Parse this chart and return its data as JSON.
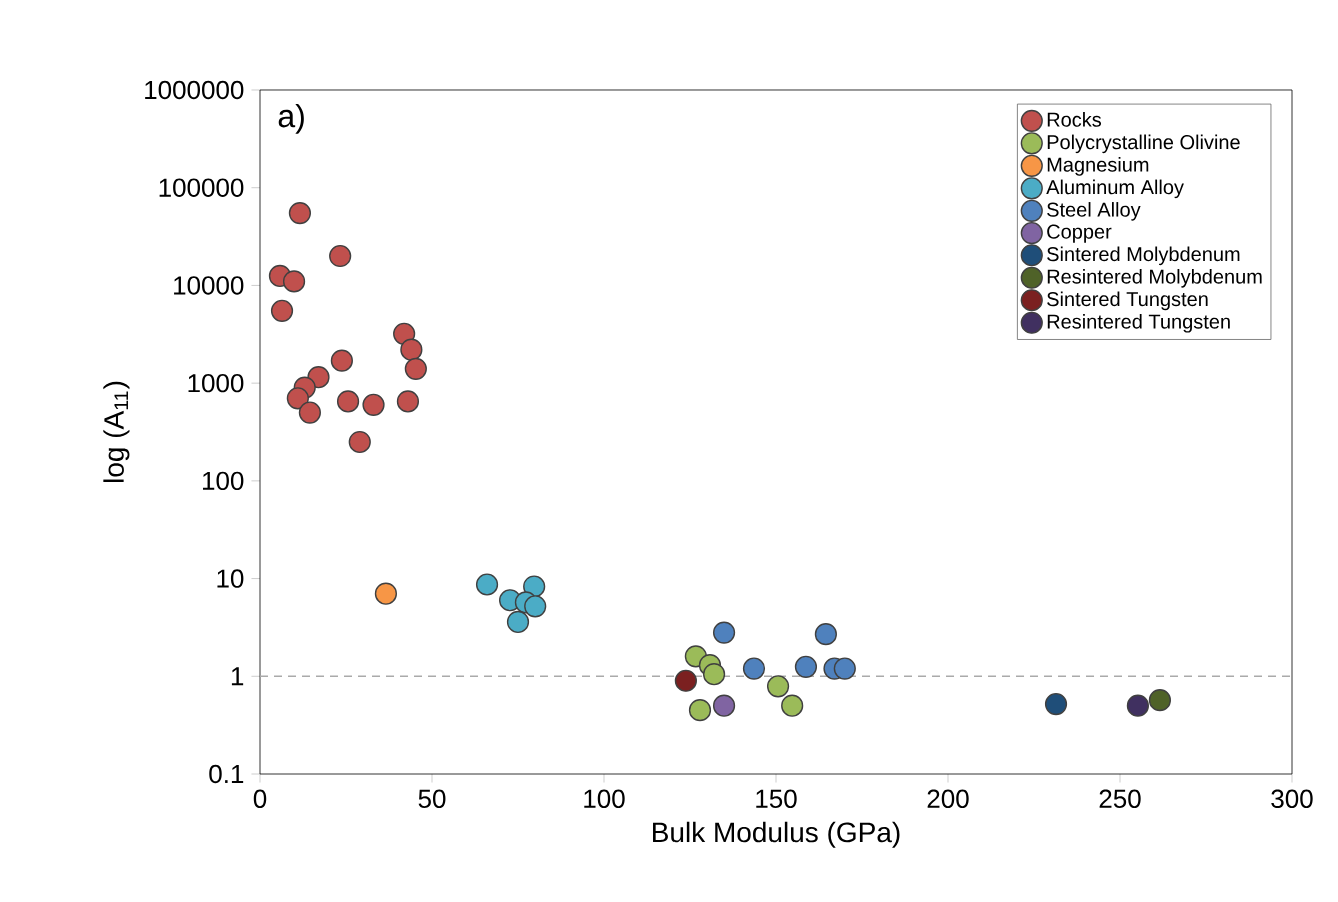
{
  "chart_data": {
    "type": "scatter",
    "xlabel": "Bulk Modulus (GPa)",
    "ylabel": "log (A$_{11}$)",
    "log": "y",
    "xlim": [
      0,
      300
    ],
    "ylim": [
      0.1,
      1000000
    ],
    "xticks": [
      0,
      50,
      100,
      150,
      200,
      250,
      300
    ],
    "yticks": [
      0.1,
      1,
      10,
      100,
      1000,
      10000,
      100000,
      1000000
    ],
    "grid": false,
    "legend": "top right",
    "marker": "circle",
    "annotations": [
      "a)"
    ],
    "ref_lines": [
      {
        "axis": "y",
        "value": 1,
        "color": "#aaaaaa",
        "line_style": "dashed"
      }
    ],
    "series": [
      {
        "name": "Rocks",
        "color": "#c0504d",
        "x": [
          11.6,
          23.3,
          5.8,
          9.9,
          6.4,
          41.9,
          44,
          45.3,
          23.8,
          17,
          13,
          11,
          14.5,
          25.6,
          33,
          43,
          29
        ],
        "values": [
          55000,
          20000,
          12500,
          11000,
          5500,
          3200,
          2200,
          1400,
          1700,
          1150,
          900,
          700,
          500,
          650,
          600,
          650,
          250
        ]
      },
      {
        "name": "Polycrystalline Olivine",
        "color": "#9bbb59",
        "x": [
          126.7,
          130.8,
          132,
          127.9,
          150.6,
          154.7
        ],
        "values": [
          1.6,
          1.3,
          1.05,
          0.45,
          0.79,
          0.5
        ]
      },
      {
        "name": "Magnesium",
        "color": "#f79646",
        "x": [
          36.6
        ],
        "values": [
          7
        ]
      },
      {
        "name": "Aluminum Alloy",
        "color": "#4bacc6",
        "x": [
          66,
          74.4,
          79.7,
          72.7,
          77.3,
          80,
          75
        ],
        "values": [
          8.7,
          null,
          8.3,
          6.0,
          5.7,
          5.2,
          3.6
        ]
      },
      {
        "name": "Steel Alloy",
        "color": "#4f81bd",
        "x": [
          134.9,
          143.6,
          158.7,
          164,
          166,
          167,
          170,
          164.5
        ],
        "values": [
          2.8,
          1.2,
          1.25,
          null,
          null,
          1.2,
          1.2,
          2.7
        ]
      },
      {
        "name": "Copper",
        "color": "#8064a2",
        "x": [
          134.9
        ],
        "values": [
          0.5
        ]
      },
      {
        "name": "Sintered Molybdenum",
        "color": "#1f4e79",
        "x": [
          231.4
        ],
        "values": [
          0.52
        ]
      },
      {
        "name": "Resintered Molybdenum",
        "color": "#4f6228",
        "x": [
          261.6
        ],
        "values": [
          0.57
        ]
      },
      {
        "name": "Sintered Tungsten",
        "color": "#7b2020",
        "x": [
          123.8
        ],
        "values": [
          0.9
        ]
      },
      {
        "name": "Resintered Tungsten",
        "color": "#403060",
        "x": [
          255.2
        ],
        "values": [
          0.5
        ]
      }
    ]
  }
}
